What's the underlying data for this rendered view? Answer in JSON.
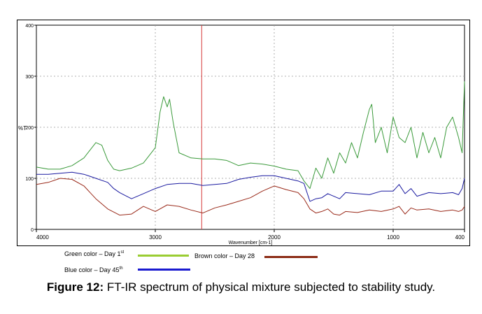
{
  "chart_data": {
    "type": "line",
    "xlabel": "Wavenumber [cm-1]",
    "ylabel": "%T",
    "xlim": [
      4000,
      400
    ],
    "ylim": [
      0,
      400
    ],
    "x_ticks": [
      "4000",
      "3000",
      "2000",
      "1000",
      "400"
    ],
    "y_ticks": [
      "400",
      "300",
      "200",
      "100",
      "0"
    ],
    "grid": true,
    "cursor_x": 2610,
    "series": [
      {
        "name": "Green color – Day 1st",
        "color": "#3a9a3a",
        "x": [
          4000,
          3900,
          3800,
          3700,
          3600,
          3500,
          3450,
          3400,
          3350,
          3300,
          3200,
          3100,
          3000,
          2960,
          2930,
          2900,
          2880,
          2850,
          2800,
          2700,
          2600,
          2500,
          2400,
          2350,
          2300,
          2200,
          2100,
          2000,
          1900,
          1800,
          1750,
          1700,
          1650,
          1600,
          1550,
          1500,
          1450,
          1400,
          1350,
          1300,
          1250,
          1200,
          1180,
          1150,
          1100,
          1050,
          1000,
          950,
          900,
          850,
          800,
          750,
          700,
          650,
          600,
          550,
          500,
          450,
          420,
          400
        ],
        "y": [
          122,
          118,
          118,
          125,
          140,
          170,
          165,
          135,
          118,
          115,
          120,
          130,
          160,
          230,
          260,
          240,
          255,
          210,
          150,
          140,
          138,
          138,
          135,
          130,
          125,
          130,
          128,
          124,
          118,
          115,
          95,
          80,
          120,
          100,
          140,
          110,
          150,
          130,
          170,
          140,
          190,
          235,
          245,
          170,
          200,
          150,
          220,
          180,
          170,
          200,
          140,
          190,
          150,
          180,
          140,
          200,
          220,
          180,
          150,
          290
        ]
      },
      {
        "name": "Blue color – Day 45th",
        "color": "#1a1aa0",
        "x": [
          4000,
          3900,
          3800,
          3700,
          3600,
          3500,
          3400,
          3350,
          3300,
          3200,
          3100,
          3000,
          2900,
          2800,
          2700,
          2600,
          2500,
          2400,
          2300,
          2200,
          2100,
          2000,
          1900,
          1800,
          1750,
          1700,
          1650,
          1600,
          1550,
          1500,
          1450,
          1400,
          1300,
          1200,
          1100,
          1000,
          950,
          900,
          850,
          800,
          700,
          600,
          500,
          450,
          420,
          400
        ],
        "y": [
          108,
          108,
          110,
          112,
          108,
          100,
          92,
          80,
          72,
          60,
          70,
          80,
          88,
          90,
          90,
          86,
          88,
          90,
          98,
          102,
          105,
          105,
          100,
          95,
          90,
          55,
          60,
          62,
          70,
          65,
          60,
          72,
          70,
          68,
          75,
          75,
          88,
          70,
          80,
          65,
          72,
          70,
          72,
          68,
          80,
          100
        ]
      },
      {
        "name": "Brown color – Day 28",
        "color": "#9a2a1a",
        "x": [
          4000,
          3900,
          3800,
          3700,
          3600,
          3500,
          3400,
          3300,
          3200,
          3100,
          3000,
          2900,
          2800,
          2700,
          2600,
          2500,
          2400,
          2300,
          2200,
          2100,
          2000,
          1900,
          1800,
          1750,
          1700,
          1650,
          1600,
          1550,
          1500,
          1450,
          1400,
          1300,
          1200,
          1100,
          1000,
          950,
          900,
          850,
          800,
          700,
          600,
          500,
          450,
          420,
          400
        ],
        "y": [
          88,
          92,
          100,
          98,
          85,
          60,
          40,
          28,
          30,
          45,
          35,
          48,
          45,
          38,
          32,
          42,
          48,
          55,
          62,
          75,
          85,
          78,
          72,
          60,
          40,
          32,
          35,
          40,
          30,
          28,
          35,
          33,
          38,
          35,
          40,
          45,
          30,
          42,
          38,
          40,
          35,
          38,
          35,
          38,
          45
        ]
      }
    ]
  },
  "legend": [
    {
      "label": "Green color – Day 1",
      "sup": "st",
      "color": "#9acd32"
    },
    {
      "label": "Brown color – Day 28",
      "sup": "",
      "color": "#8b2a14"
    },
    {
      "label": "Blue color – Day 45",
      "sup": "th",
      "color": "#1a1ad0"
    }
  ],
  "caption": {
    "prefix": "Figure 12:",
    "text": " FT-IR spectrum of physical mixture subjected to stability study."
  }
}
